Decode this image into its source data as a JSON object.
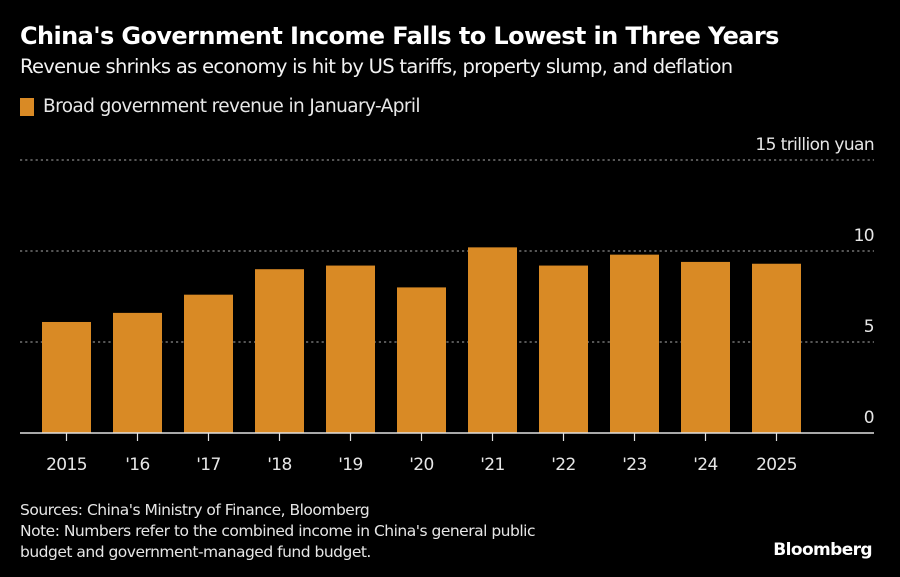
{
  "header": {
    "title": "China's Government Income Falls to Lowest in Three Years",
    "subtitle": "Revenue shrinks as economy is hit by US tariffs, property slump, and deflation"
  },
  "legend": {
    "label": "Broad government revenue in January-April",
    "color": "#D98A25"
  },
  "footer": {
    "sources": "Sources: China's Ministry of Finance, Bloomberg",
    "note_line1": "Note: Numbers refer to the combined income in China's general public",
    "note_line2": "budget and government-managed fund budget.",
    "logo": "Bloomberg"
  },
  "chart_data": {
    "type": "bar",
    "title": "China's Government Income Falls to Lowest in Three Years",
    "subtitle": "Revenue shrinks as economy is hit by US tariffs, property slump, and deflation",
    "xlabel": "",
    "ylabel": "trillion yuan",
    "categories": [
      "2015",
      "'16",
      "'17",
      "'18",
      "'19",
      "'20",
      "'21",
      "'22",
      "'23",
      "'24",
      "2025"
    ],
    "series": [
      {
        "name": "Broad government revenue in January-April",
        "color": "#D98A25",
        "values": [
          6.1,
          6.6,
          7.6,
          9.0,
          9.2,
          8.0,
          10.2,
          9.2,
          9.8,
          9.4,
          9.3
        ]
      }
    ],
    "ylim": [
      0,
      15
    ],
    "yticks": [
      0,
      5,
      10,
      15
    ],
    "ytick_labels": [
      "0",
      "5",
      "10",
      "15 trillion yuan"
    ],
    "y_axis_side": "right",
    "grid": true,
    "grid_style": "dotted",
    "legend_position": "top-left",
    "background": "#000000"
  }
}
